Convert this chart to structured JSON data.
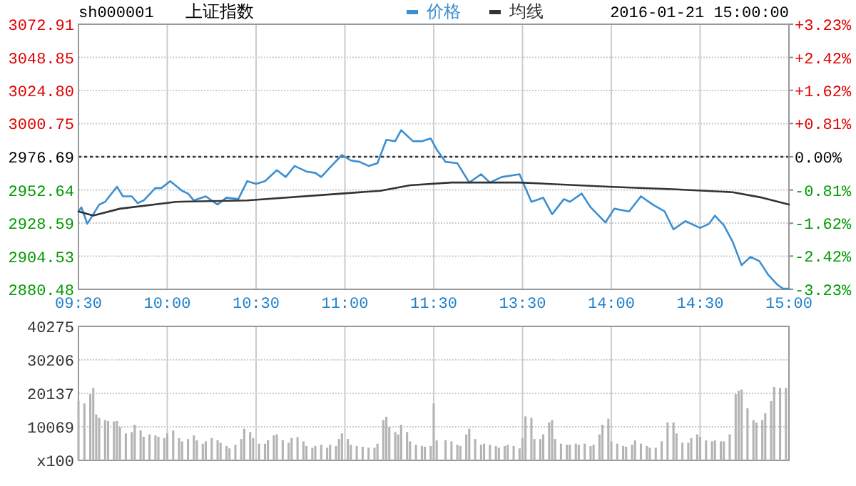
{
  "chart_data": [
    {
      "type": "line",
      "title": "上证指数",
      "subtitle": "sh000001",
      "annotations": [
        "2016-01-21 15:00:00"
      ],
      "legend": "top",
      "grid": true,
      "categories": [
        "09:30",
        null,
        null,
        null,
        null,
        null,
        null,
        null,
        null,
        null,
        null,
        null,
        null,
        null,
        null,
        null,
        null,
        null,
        null,
        null,
        null,
        null,
        null,
        null,
        null,
        null,
        null,
        null,
        null,
        null,
        "10:00",
        null,
        null,
        null,
        null,
        null,
        null,
        null,
        null,
        null,
        null,
        null,
        null,
        null,
        null,
        null,
        null,
        null,
        null,
        null,
        null,
        null,
        null,
        null,
        null,
        null,
        null,
        null,
        null,
        null,
        "10:30",
        null,
        null,
        null,
        null,
        null,
        null,
        null,
        null,
        null,
        null,
        null,
        null,
        null,
        null,
        null,
        null,
        null,
        null,
        null,
        null,
        null,
        null,
        null,
        null,
        null,
        null,
        null,
        null,
        null,
        "11:00",
        null,
        null,
        null,
        null,
        null,
        null,
        null,
        null,
        null,
        null,
        null,
        null,
        null,
        null,
        null,
        null,
        null,
        null,
        null,
        null,
        null,
        null,
        null,
        null,
        null,
        null,
        null,
        null,
        null,
        "11:30",
        null,
        null,
        null,
        null,
        null,
        null,
        null,
        null,
        null,
        null,
        null,
        null,
        null,
        null,
        null,
        null,
        null,
        null,
        null,
        null,
        null,
        null,
        null,
        null,
        null,
        null,
        null,
        null,
        null,
        "13:30",
        null,
        null,
        null,
        null,
        null,
        null,
        null,
        null,
        null,
        null,
        null,
        null,
        null,
        null,
        null,
        null,
        null,
        null,
        null,
        null,
        null,
        null,
        null,
        null,
        null,
        null,
        null,
        null,
        null,
        "14:00",
        null,
        null,
        null,
        null,
        null,
        null,
        null,
        null,
        null,
        null,
        null,
        null,
        null,
        null,
        null,
        null,
        null,
        null,
        null,
        null,
        null,
        null,
        null,
        null,
        null,
        null,
        null,
        null,
        null,
        "14:30",
        null,
        null,
        null,
        null,
        null,
        null,
        null,
        null,
        null,
        null,
        null,
        null,
        null,
        null,
        null,
        null,
        null,
        null,
        null,
        null,
        null,
        null,
        null,
        null,
        null,
        null,
        null,
        null,
        null,
        "15:00"
      ],
      "ylim": [
        2880.48,
        3072.91
      ],
      "yticks": [
        2880.48,
        2904.53,
        2928.59,
        2952.64,
        2976.69,
        3000.75,
        {
          "value": 3024.8,
          "label": "3024.80"
        },
        3048.85,
        3072.91
      ],
      "y2lim": [
        -3.23,
        3.23
      ],
      "y2ticks": [
        {
          "value": -3.23,
          "label": "-3.23%"
        },
        {
          "value": -2.42,
          "label": "-2.42%"
        },
        {
          "value": -1.62,
          "label": "-1.62%"
        },
        {
          "value": -0.81,
          "label": "-0.81%"
        },
        {
          "value": 0,
          "label": "0.00%"
        },
        {
          "value": 0.81,
          "label": "+0.81%"
        },
        {
          "value": 1.62,
          "label": "+1.62%"
        },
        {
          "value": 2.42,
          "label": "+2.42%"
        },
        {
          "value": 3.23,
          "label": "+3.23%"
        }
      ],
      "ref_lines": [
        {
          "axis": "y",
          "value": 2976.69,
          "line_style": "dotted",
          "color": "#333333"
        }
      ],
      "series": [
        {
          "name": "价格",
          "color": "#3d8fd1",
          "values": [
            2937,
            2940,
            null,
            2928,
            null,
            2935,
            null,
            2942,
            null,
            2944,
            null,
            null,
            null,
            2955,
            null,
            2948,
            null,
            null,
            2948,
            null,
            2943,
            null,
            2945,
            null,
            null,
            null,
            2954,
            null,
            2954,
            null,
            null,
            2959,
            null,
            null,
            null,
            2952,
            null,
            2950,
            null,
            2945,
            null,
            null,
            null,
            2948,
            null,
            null,
            null,
            2942,
            null,
            null,
            2947,
            null,
            null,
            null,
            2946,
            null,
            null,
            2959,
            null,
            null,
            2957,
            null,
            null,
            2959,
            null,
            null,
            null,
            2967,
            null,
            null,
            2962,
            null,
            null,
            2970,
            null,
            null,
            null,
            2966,
            null,
            null,
            2965,
            null,
            2962,
            null,
            null,
            2969,
            null,
            null,
            null,
            2978,
            null,
            null,
            2974,
            null,
            null,
            2973,
            null,
            null,
            2970,
            null,
            null,
            2972,
            null,
            null,
            2989,
            null,
            null,
            2988,
            null,
            2996,
            null,
            null,
            null,
            2988,
            null,
            null,
            2988,
            null,
            null,
            2990,
            null,
            2982,
            null,
            null,
            2973,
            null,
            null,
            null,
            2972,
            null,
            null,
            null,
            2958,
            null,
            null,
            null,
            2964,
            null,
            null,
            2958,
            null,
            null,
            null,
            2962,
            null,
            null,
            null,
            null,
            null,
            2964,
            null,
            null,
            null,
            2944,
            null,
            null,
            null,
            2947,
            null,
            null,
            2935,
            null,
            null,
            null,
            2946,
            null,
            2944,
            null,
            null,
            null,
            2950,
            null,
            null,
            2940,
            null,
            null,
            null,
            null,
            2929,
            null,
            null,
            2939,
            null,
            null,
            null,
            null,
            2937,
            null,
            null,
            null,
            2948,
            null,
            null,
            null,
            2942,
            null,
            null,
            null,
            2937,
            null,
            null,
            2924,
            null,
            null,
            null,
            2930,
            null,
            null,
            null,
            null,
            2925,
            null,
            null,
            2928,
            null,
            2934,
            null,
            null,
            2927,
            null,
            null,
            2915,
            null,
            null,
            2898,
            null,
            null,
            2904,
            null,
            null,
            2901,
            null,
            null,
            2891,
            null,
            null,
            2884,
            null,
            2881,
            null,
            2881
          ]
        },
        {
          "name": "均线",
          "color": "#333333",
          "values": [
            2937,
            null,
            null,
            null,
            null,
            2934,
            null,
            null,
            null,
            null,
            null,
            null,
            null,
            null,
            2939,
            null,
            null,
            null,
            null,
            null,
            null,
            null,
            null,
            null,
            null,
            null,
            null,
            null,
            null,
            null,
            null,
            null,
            null,
            2944,
            null,
            null,
            null,
            null,
            null,
            null,
            null,
            null,
            null,
            null,
            null,
            null,
            null,
            null,
            null,
            null,
            null,
            null,
            null,
            null,
            null,
            null,
            null,
            2945,
            null,
            null,
            null,
            null,
            null,
            null,
            null,
            null,
            null,
            null,
            null,
            null,
            null,
            null,
            null,
            null,
            null,
            null,
            null,
            null,
            null,
            null,
            null,
            null,
            null,
            null,
            null,
            null,
            null,
            null,
            null,
            2950,
            null,
            null,
            null,
            null,
            null,
            null,
            null,
            null,
            null,
            null,
            null,
            null,
            2952,
            null,
            null,
            null,
            null,
            null,
            null,
            null,
            null,
            null,
            2956,
            null,
            null,
            null,
            null,
            null,
            null,
            null,
            null,
            null,
            null,
            null,
            null,
            null,
            2958,
            null,
            null,
            null,
            null,
            null,
            null,
            null,
            null,
            null,
            null,
            null,
            null,
            null,
            null,
            null,
            null,
            null,
            null,
            null,
            null,
            null,
            null,
            2958,
            null,
            null,
            null,
            null,
            null,
            null,
            null,
            null,
            null,
            null,
            null,
            null,
            null,
            null,
            null,
            null,
            null,
            null,
            null,
            null,
            null,
            null,
            null,
            null,
            null,
            null,
            null,
            null,
            null,
            2955,
            null,
            null,
            null,
            null,
            null,
            null,
            null,
            null,
            null,
            null,
            null,
            null,
            null,
            null,
            null,
            null,
            null,
            null,
            null,
            null,
            null,
            null,
            2953,
            null,
            null,
            null,
            null,
            null,
            null,
            null,
            null,
            null,
            null,
            null,
            null,
            null,
            null,
            null,
            null,
            null,
            null,
            2951,
            null,
            null,
            null,
            null,
            null,
            null,
            null,
            null,
            null,
            2947,
            null,
            null,
            null,
            null,
            null,
            null,
            null,
            null,
            2942
          ]
        }
      ]
    },
    {
      "type": "bar",
      "grid": true,
      "tick_labels": "y",
      "color": "#b4b4b4",
      "categories": [
        null,
        null,
        null,
        null,
        null,
        null,
        null,
        null,
        null,
        null,
        null,
        null,
        null,
        null,
        null,
        null,
        null,
        null,
        null,
        null,
        null,
        null,
        null,
        null,
        null,
        null,
        null,
        null,
        null,
        null,
        null,
        null,
        null,
        null,
        null,
        null,
        null,
        null,
        null,
        null,
        null,
        null,
        null,
        null,
        null,
        null,
        null,
        null,
        null,
        null,
        null,
        null,
        null,
        null,
        null,
        null,
        null,
        null,
        null,
        null,
        null,
        null,
        null,
        null,
        null,
        null,
        null,
        null,
        null,
        null,
        null,
        null,
        null,
        null,
        null,
        null,
        null,
        null,
        null,
        null,
        null,
        null,
        null,
        null,
        null,
        null,
        null,
        null,
        null,
        null,
        null,
        null,
        null,
        null,
        null,
        null,
        null,
        null,
        null,
        null,
        null,
        null,
        null,
        null,
        null,
        null,
        null,
        null,
        null,
        null,
        null,
        null,
        null,
        null,
        null,
        null,
        null,
        null,
        null,
        null,
        null,
        null,
        null,
        null,
        null,
        null,
        null,
        null,
        null,
        null,
        null,
        null,
        null,
        null,
        null,
        null,
        null,
        null,
        null,
        null,
        null,
        null,
        null,
        null,
        null,
        null,
        null,
        null,
        null,
        null,
        null,
        null,
        null,
        null,
        null,
        null,
        null,
        null,
        null,
        null,
        null,
        null,
        null,
        null,
        null,
        null,
        null,
        null,
        null,
        null,
        null,
        null,
        null,
        null,
        null,
        null,
        null,
        null,
        null,
        null,
        null,
        null,
        null,
        null,
        null,
        null,
        null,
        null,
        null,
        null,
        null,
        null,
        null,
        null,
        null,
        null,
        null,
        null,
        null,
        null,
        null,
        null,
        null,
        null,
        null,
        null,
        null,
        null,
        null,
        null,
        null,
        null,
        null,
        null,
        null,
        null,
        null,
        null,
        null,
        null,
        null,
        null,
        null,
        null,
        null,
        null,
        null,
        null,
        null,
        null,
        null,
        null,
        null,
        null,
        null,
        null,
        null,
        null,
        null,
        null,
        null
      ],
      "ylim": [
        0,
        40275
      ],
      "yticks": [
        {
          "value": 0,
          "label": "x100"
        },
        10069,
        20137,
        30206,
        40275
      ],
      "values": [
        17800,
        null,
        17100,
        null,
        19900,
        21800,
        13800,
        12800,
        null,
        12100,
        11800,
        null,
        11700,
        11800,
        10000,
        null,
        8100,
        null,
        8500,
        10700,
        null,
        9000,
        7100,
        null,
        7800,
        null,
        7500,
        7100,
        null,
        6700,
        8100,
        null,
        9000,
        null,
        6700,
        5700,
        null,
        6400,
        null,
        7500,
        6000,
        null,
        5000,
        5700,
        null,
        6700,
        null,
        6100,
        5300,
        null,
        4300,
        3600,
        null,
        4700,
        null,
        6400,
        9500,
        null,
        8500,
        6700,
        null,
        5000,
        null,
        5000,
        6100,
        null,
        7500,
        7800,
        null,
        6100,
        null,
        5300,
        6700,
        null,
        7000,
        null,
        5700,
        4300,
        null,
        3800,
        4300,
        null,
        4700,
        null,
        3800,
        4700,
        null,
        4300,
        6400,
        8100,
        null,
        6400,
        4700,
        null,
        4300,
        null,
        4100,
        null,
        3800,
        null,
        3800,
        5000,
        null,
        12100,
        13100,
        10000,
        null,
        8500,
        7800,
        10700,
        null,
        8500,
        5700,
        null,
        4700,
        null,
        4300,
        4100,
        null,
        4300,
        17100,
        6000,
        null,
        null,
        6100,
        null,
        5700,
        null,
        4700,
        4300,
        null,
        7800,
        9500,
        null,
        6400,
        null,
        4700,
        5000,
        null,
        4700,
        null,
        4300,
        3800,
        null,
        4300,
        4700,
        null,
        4300,
        null,
        3600,
        6700,
        13200,
        null,
        12800,
        6400,
        null,
        6400,
        7800,
        null,
        11400,
        12100,
        6400,
        null,
        5000,
        null,
        4700,
        4700,
        null,
        5000,
        4700,
        null,
        5000,
        null,
        4300,
        4700,
        null,
        7800,
        10700,
        null,
        12500,
        5700,
        null,
        5000,
        null,
        4300,
        4100,
        null,
        4700,
        6000,
        null,
        5000,
        null,
        4300,
        3800,
        null,
        3800,
        null,
        5700,
        null,
        11400,
        null,
        11400,
        8100,
        null,
        5300,
        null,
        5300,
        6700,
        null,
        7800,
        7100,
        null,
        6000,
        null,
        5700,
        6000,
        null,
        5700,
        5700,
        null,
        7800,
        null,
        19900,
        20900,
        21300,
        null,
        15700,
        null,
        12100,
        11400,
        null,
        12100,
        14200,
        null,
        17800,
        22100,
        null,
        21800,
        null,
        21800,
        null
      ]
    }
  ]
}
